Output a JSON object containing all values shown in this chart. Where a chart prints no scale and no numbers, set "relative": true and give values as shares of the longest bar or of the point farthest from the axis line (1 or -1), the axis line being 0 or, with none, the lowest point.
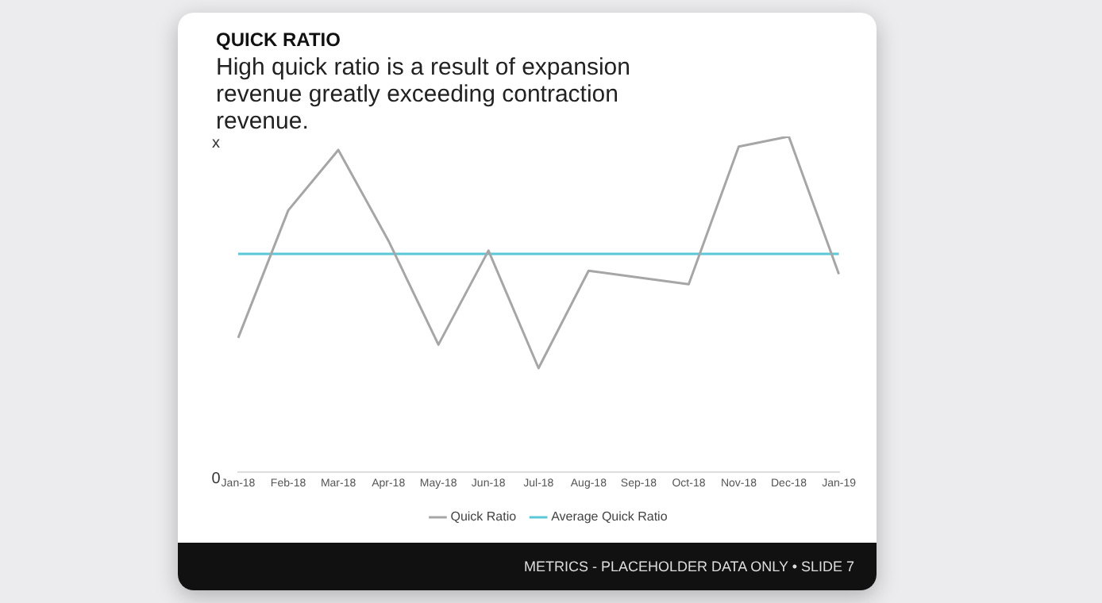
{
  "chart_data": {
    "type": "line",
    "title": "QUICK RATIO",
    "subtitle": "High quick ratio is a result of expansion revenue greatly exceeding contraction revenue.",
    "categories": [
      "Jan-18",
      "Feb-18",
      "Mar-18",
      "Apr-18",
      "May-18",
      "Jun-18",
      "Jul-18",
      "Aug-18",
      "Sep-18",
      "Oct-18",
      "Nov-18",
      "Dec-18",
      "Jan-19"
    ],
    "series": [
      {
        "name": "Quick Ratio",
        "color": "#a6a6a6",
        "values": [
          0.4,
          0.78,
          0.96,
          0.69,
          0.38,
          0.66,
          0.31,
          0.6,
          0.58,
          0.56,
          0.97,
          1,
          0.59
        ]
      },
      {
        "name": "Average Quick Ratio",
        "color": "#5bc8d8",
        "values": [
          0.65,
          0.65,
          0.65,
          0.65,
          0.65,
          0.65,
          0.65,
          0.65,
          0.65,
          0.65,
          0.65,
          0.65,
          0.65
        ]
      }
    ],
    "relative": true,
    "legend": "bottom",
    "marker": "none",
    "grid": false,
    "annotations": [
      "x",
      "0",
      "METRICS - PLACEHOLDER DATA ONLY • SLIDE 7"
    ]
  }
}
